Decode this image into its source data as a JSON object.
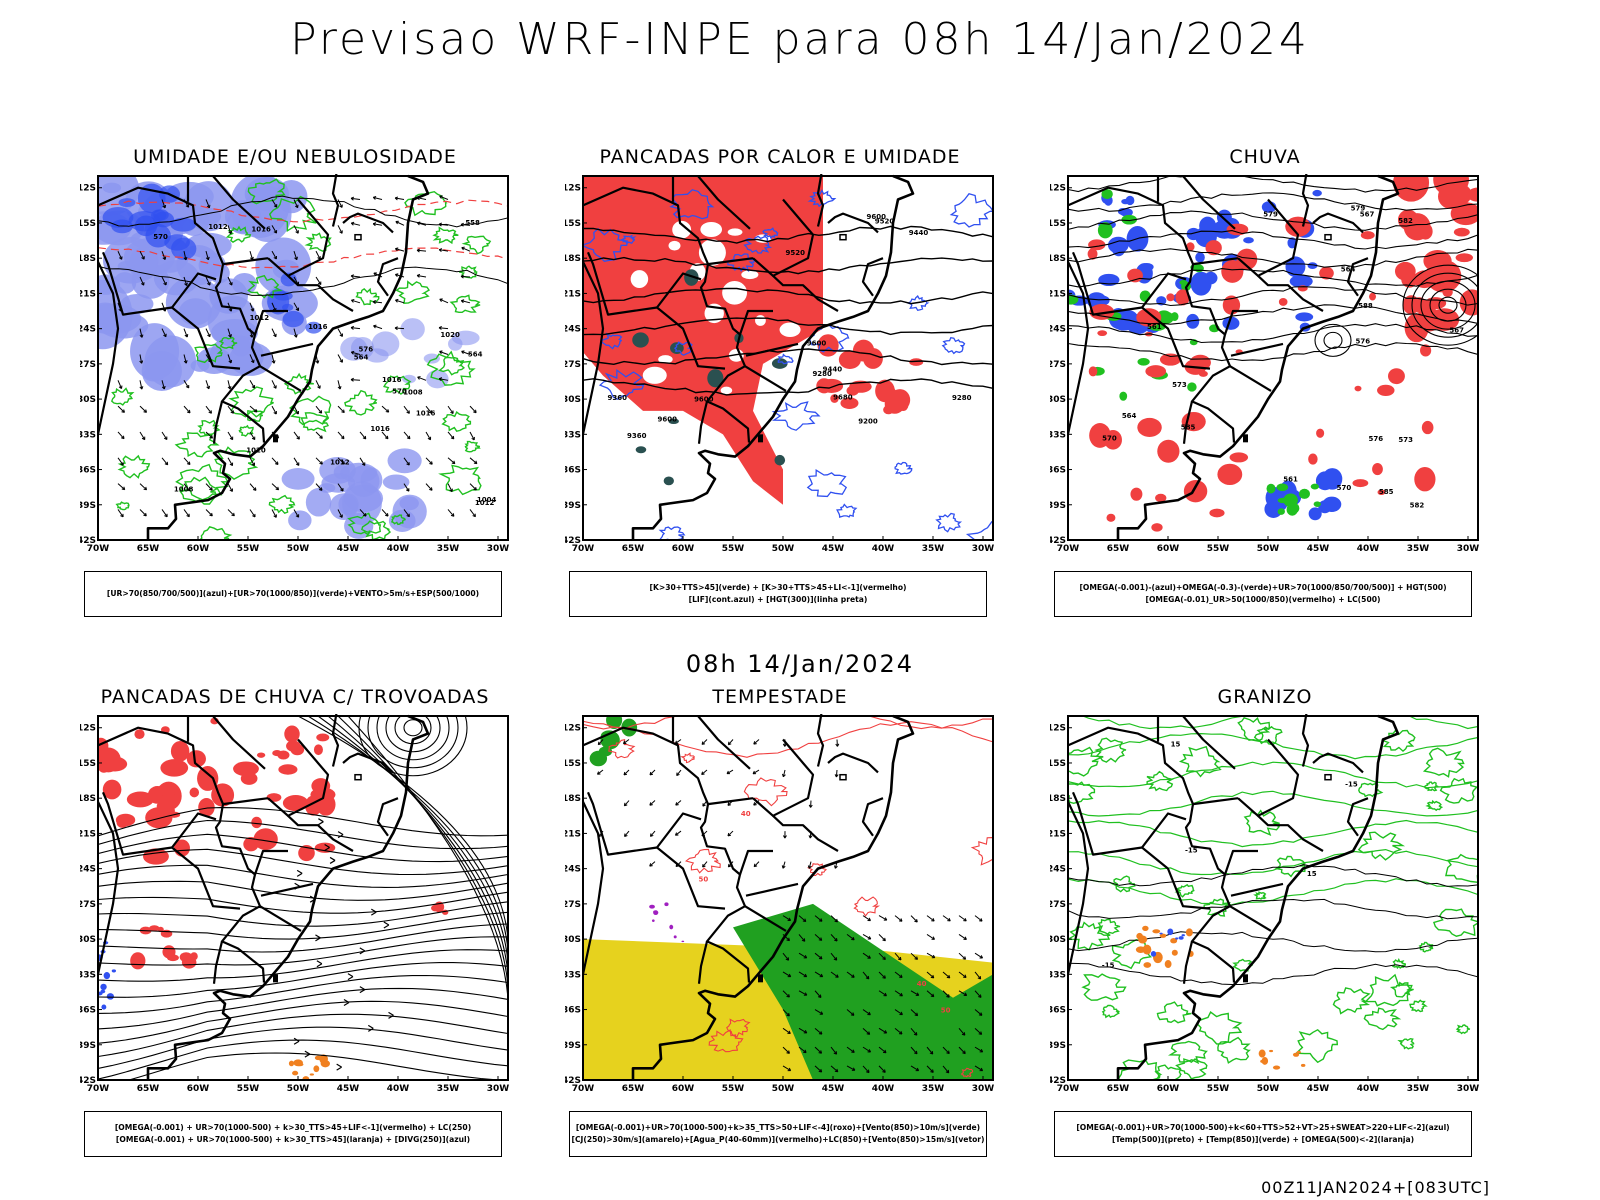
{
  "title": "Previsao WRF-INPE  para 08h 14/Jan/2024",
  "mid_title": "08h 14/Jan/2024",
  "footer": "00Z11JAN2024+[083UTC]",
  "axes": {
    "lat_labels": [
      "12S",
      "15S",
      "18S",
      "21S",
      "24S",
      "27S",
      "30S",
      "33S",
      "36S",
      "39S",
      "42S"
    ],
    "lon_labels": [
      "70W",
      "65W",
      "60W",
      "55W",
      "50W",
      "45W",
      "40W",
      "35W",
      "30W"
    ]
  },
  "colors": {
    "red": "#f04040",
    "blue": "#3050f0",
    "light_blue": "#8c96f0",
    "green": "#20c020",
    "dark_green": "#20a020",
    "yellow": "#e6d21e",
    "orange": "#f08020",
    "teal": "#2a5050",
    "purple": "#a020c0",
    "black": "#000000"
  },
  "panels": [
    {
      "id": "umidade",
      "title": "UMIDADE E/OU NEBULOSIDADE",
      "legend": [
        "[UR>70(850/700/500)](azul)+[UR>70(1000/850)](verde)+VENTO>5m/s+ESP(500/1000)"
      ],
      "contour_labels": [
        "1012",
        "1016",
        "1016",
        "1012",
        "1016",
        "1020",
        "1008",
        "1012",
        "1008",
        "1012",
        "1020",
        "1016",
        "1016",
        "1004",
        "576",
        "570",
        "564",
        "558",
        "570",
        "564"
      ]
    },
    {
      "id": "pancadas-calor",
      "title": "PANCADAS POR CALOR E UMIDADE",
      "legend": [
        "[K>30+TTS>45](verde) + [K>30+TTS>45+LI<-1](vermelho)",
        "[LIF](cont.azul) + [HGT(300)](linha preta)"
      ],
      "contour_labels": [
        "9600",
        "9680",
        "9600",
        "9600",
        "9520",
        "9440",
        "9360",
        "9280",
        "9200",
        "9600",
        "9520",
        "9440",
        "9360",
        "9280"
      ]
    },
    {
      "id": "chuva",
      "title": "CHUVA",
      "legend": [
        "[OMEGA(-0.001)-(azul)+OMEGA(-0.3)-(verde)+UR>70(1000/850/700/500)] + HGT(500)",
        "[OMEGA(-0.01)_UR>50(1000/850)(vermelho) + LC(500)"
      ],
      "contour_labels": [
        "585",
        "582",
        "579",
        "576",
        "573",
        "570",
        "567",
        "564",
        "561",
        "588",
        "585",
        "582",
        "579",
        "576",
        "573",
        "570",
        "567",
        "564",
        "561"
      ]
    },
    {
      "id": "trovoadas",
      "title": "PANCADAS DE CHUVA C/ TROVOADAS",
      "legend": [
        "[OMEGA(-0.001) + UR>70(1000-500) + k>30_TTS>45+LIF<-1](vermelho) + LC(250)",
        "[OMEGA(-0.001) + UR>70(1000-500) + k>30_TTS>45](laranja) + [DIVG(250)](azul)"
      ],
      "contour_labels": []
    },
    {
      "id": "tempestade",
      "title": "TEMPESTADE",
      "legend": [
        "[OMEGA(-0.001)+UR>70(1000-500)+k>35_TTS>50+LIF<-4](roxo)+[Vento(850)>10m/s](verde)",
        "[CJ(250)>30m/s](amarelo)+[Agua_P(40-60mm)](vermelho)+LC(850)+[Vento(850)>15m/s](vetor)"
      ],
      "contour_labels": [
        "50",
        "40",
        "40",
        "50"
      ]
    },
    {
      "id": "granizo",
      "title": "GRANIZO",
      "legend": [
        "[OMEGA(-0.001)+UR>70(1000-500)+k<60+TTS>52+VT>25+SWEAT>220+LIF<-2](azul)",
        "[Temp(500)](preto) + [Temp(850)](verde) + [OMEGA(500)<-2](laranja)"
      ],
      "contour_labels": [
        "-15",
        "-15",
        "-15",
        "15",
        "15"
      ]
    }
  ]
}
